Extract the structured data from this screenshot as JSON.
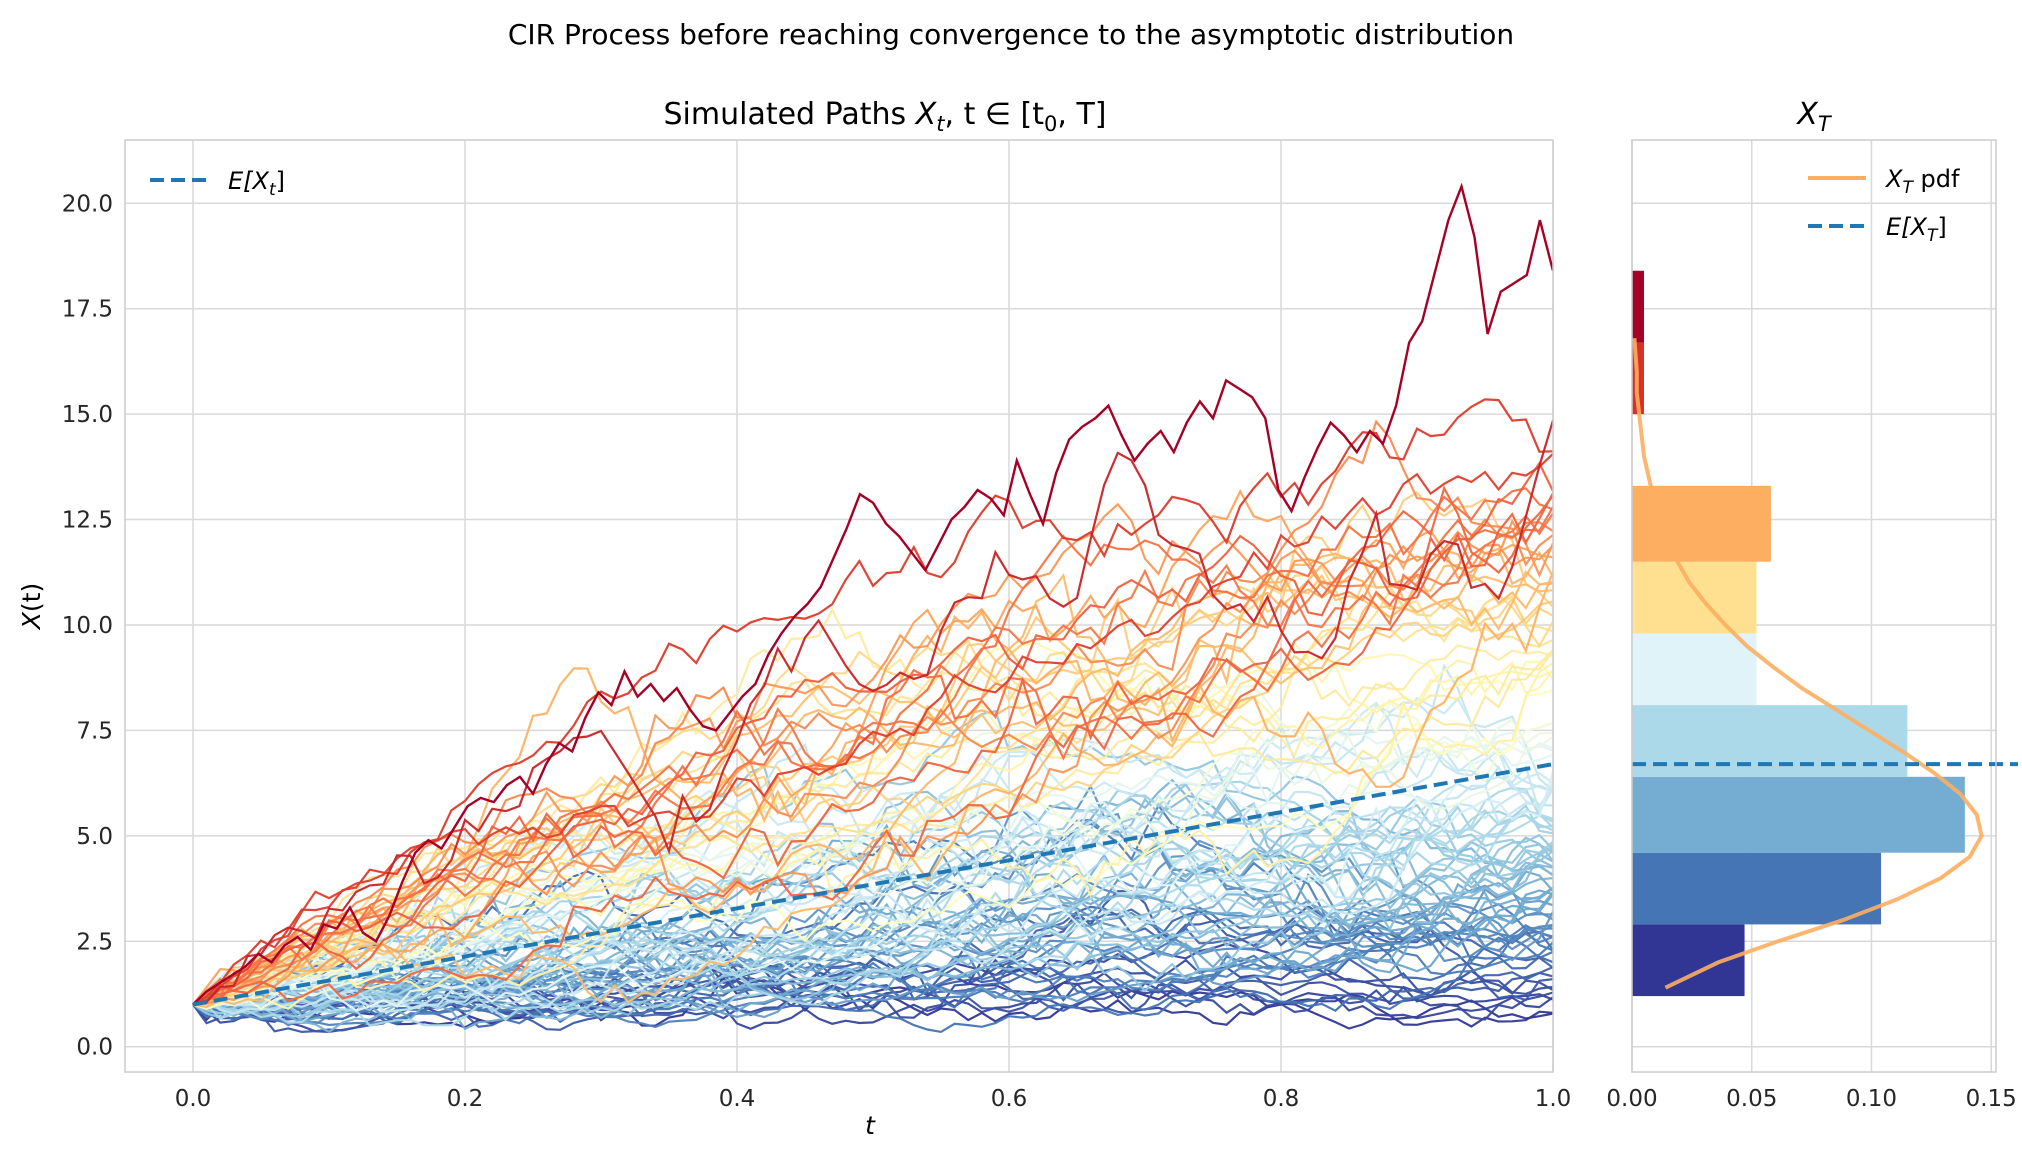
{
  "figure": {
    "suptitle": "CIR Process before reaching convergence to the asymptotic distribution"
  },
  "chart_data": [
    {
      "type": "line",
      "title_main": "Simulated Paths ",
      "title_math": "X",
      "title_sub": "t",
      "title_rest": ", t ∈ [t",
      "title_sub2": "0",
      "title_end": ", T]",
      "xlabel": "t",
      "ylabel_main": "X",
      "ylabel_rest": "(t)",
      "xlim": [
        -0.05,
        1.0
      ],
      "ylim": [
        -0.6,
        21.5
      ],
      "xticks": [
        "0.0",
        "0.2",
        "0.4",
        "0.6",
        "0.8",
        "1.0"
      ],
      "yticks": [
        "0.0",
        "2.5",
        "5.0",
        "7.5",
        "10.0",
        "12.5",
        "15.0",
        "17.5",
        "20.0"
      ],
      "grid": true,
      "legend_placement": "top-left",
      "legend": [
        {
          "label_main": "E[X",
          "label_sub": "t",
          "label_end": "]",
          "style": "dashed",
          "color": "#1f77b4"
        }
      ],
      "expected_value": {
        "t0": 0.0,
        "x0": 1.0,
        "t1": 1.0,
        "x1": 6.7
      },
      "n_paths": 100,
      "t_range": [
        0.0,
        1.0
      ],
      "x0": 1.0,
      "colormap": "RdYlBu_r",
      "highlight_path": {
        "color": "#a50026",
        "values": [
          1.0,
          1.3,
          1.5,
          1.7,
          1.9,
          2.2,
          2.0,
          2.4,
          2.6,
          2.3,
          2.9,
          2.8,
          3.3,
          2.7,
          2.5,
          3.1,
          3.9,
          4.6,
          4.9,
          4.7,
          5.2,
          5.7,
          5.9,
          5.8,
          6.2,
          6.4,
          6.0,
          6.7,
          7.2,
          7.0,
          7.8,
          8.4,
          8.1,
          8.9,
          8.3,
          8.6,
          8.2,
          8.5,
          8.0,
          7.6,
          7.5,
          7.9,
          8.3,
          8.6,
          9.3,
          9.8,
          10.2,
          10.5,
          10.9,
          11.6,
          12.3,
          13.1,
          12.9,
          12.4,
          12.1,
          11.7,
          11.3,
          11.9,
          12.5,
          12.8,
          13.2,
          13.0,
          12.6,
          13.9,
          13.1,
          12.4,
          13.6,
          14.4,
          14.7,
          14.9,
          15.2,
          14.5,
          13.9,
          14.3,
          14.6,
          14.1,
          14.8,
          15.3,
          14.9,
          15.8,
          15.6,
          15.4,
          14.9,
          13.2,
          12.7,
          13.5,
          14.2,
          14.8,
          14.5,
          14.1,
          14.6,
          14.3,
          15.2,
          16.7,
          17.2,
          18.4,
          19.6,
          20.4,
          19.2,
          16.9,
          17.9,
          18.1,
          18.3,
          19.6,
          18.4
        ]
      }
    },
    {
      "type": "bar",
      "orientation": "horizontal",
      "title_math": "X",
      "title_sub": "T",
      "xlim": [
        0.0,
        0.152
      ],
      "xticks": [
        "0.00",
        "0.05",
        "0.10",
        "0.15"
      ],
      "grid": true,
      "legend_placement": "top-right",
      "legend": [
        {
          "label_main": "X",
          "label_sub": "T",
          "label_end": " pdf",
          "style": "solid",
          "color": "#fdae61"
        },
        {
          "label_main": "E[X",
          "label_sub": "T",
          "label_end": "]",
          "style": "dashed",
          "color": "#1f77b4"
        }
      ],
      "bins": [
        {
          "y0": 1.2,
          "y1": 2.9,
          "density": 0.047,
          "color": "#313695"
        },
        {
          "y0": 2.9,
          "y1": 4.6,
          "density": 0.104,
          "color": "#4575b4"
        },
        {
          "y0": 4.6,
          "y1": 6.4,
          "density": 0.139,
          "color": "#74add1"
        },
        {
          "y0": 6.4,
          "y1": 8.1,
          "density": 0.115,
          "color": "#abd9e9"
        },
        {
          "y0": 8.1,
          "y1": 9.8,
          "density": 0.052,
          "color": "#e0f3f8"
        },
        {
          "y0": 9.8,
          "y1": 11.5,
          "density": 0.052,
          "color": "#fee090"
        },
        {
          "y0": 11.5,
          "y1": 13.3,
          "density": 0.058,
          "color": "#fdae61"
        },
        {
          "y0": 13.3,
          "y1": 15.0,
          "density": 0.0,
          "color": "#f46d43"
        },
        {
          "y0": 15.0,
          "y1": 16.7,
          "density": 0.005,
          "color": "#d73027"
        },
        {
          "y0": 16.7,
          "y1": 18.4,
          "density": 0.005,
          "color": "#a50026"
        }
      ],
      "pdf_curve": {
        "x": [
          1.4,
          2.0,
          2.5,
          3.0,
          3.5,
          4.0,
          4.5,
          5.0,
          5.5,
          6.0,
          6.5,
          7.0,
          7.5,
          8.0,
          8.5,
          9.0,
          9.5,
          10.0,
          10.5,
          11.0,
          11.5,
          12.0,
          12.5,
          13.0,
          13.5,
          14.0,
          14.5,
          15.0,
          15.5,
          16.0,
          16.8
        ],
        "density": [
          0.014,
          0.036,
          0.061,
          0.088,
          0.111,
          0.129,
          0.141,
          0.146,
          0.144,
          0.137,
          0.126,
          0.113,
          0.099,
          0.085,
          0.071,
          0.059,
          0.048,
          0.039,
          0.031,
          0.024,
          0.019,
          0.015,
          0.011,
          0.009,
          0.007,
          0.005,
          0.004,
          0.003,
          0.002,
          0.002,
          0.001
        ]
      },
      "expected_value": 6.7
    }
  ]
}
